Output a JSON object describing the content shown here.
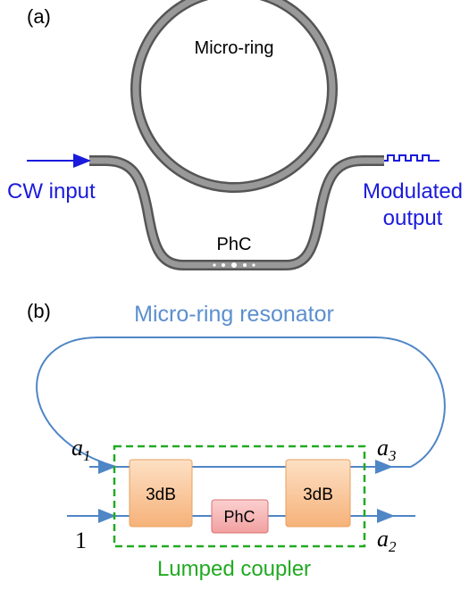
{
  "panel_a": {
    "label": "(a)",
    "ring_label": "Micro-ring",
    "input_label": "CW input",
    "output_label": [
      "Modulated",
      "output"
    ],
    "phc_label": "PhC"
  },
  "panel_b": {
    "label": "(b)",
    "title": "Micro-ring resonator",
    "a1": {
      "base": "a",
      "sub": "1"
    },
    "a3": {
      "base": "a",
      "sub": "3"
    },
    "a2": {
      "base": "a",
      "sub": "2"
    },
    "input": "1",
    "coupler_left": "3dB",
    "coupler_right": "3dB",
    "phc": "PhC",
    "caption": "Lumped coupler"
  }
}
